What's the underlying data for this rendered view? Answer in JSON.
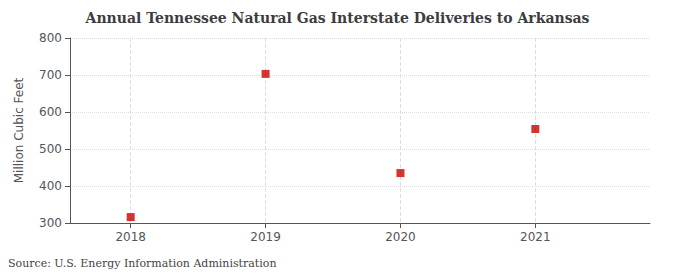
{
  "chart_data": {
    "type": "scatter",
    "title": "Annual Tennessee Natural Gas Interstate Deliveries to Arkansas",
    "ylabel": "Million Cubic Feet",
    "annotation": "Source: U.S. Energy Information Administration",
    "x": [
      2018,
      2019,
      2020,
      2021
    ],
    "values": [
      316,
      703,
      435,
      554
    ],
    "color": "#cc0000",
    "marker": "square",
    "xlim": [
      2017.55,
      2021.85
    ],
    "xticks": [
      2018,
      2019,
      2020,
      2021
    ],
    "ylim": [
      300,
      800
    ],
    "yticks": [
      300,
      400,
      500,
      600,
      700,
      800
    ],
    "grid": true
  }
}
